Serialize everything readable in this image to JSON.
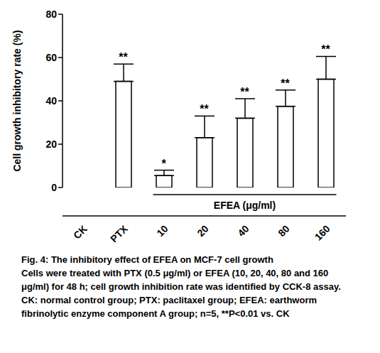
{
  "chart_data": {
    "type": "bar",
    "categories": [
      "CK",
      "PTX",
      "10",
      "20",
      "40",
      "80",
      "160"
    ],
    "values": [
      0,
      49,
      5.5,
      23,
      32,
      37.5,
      50
    ],
    "errors": [
      0,
      8,
      2.5,
      10,
      9,
      7.5,
      10.5
    ],
    "annotations": [
      null,
      "**",
      "*",
      "**",
      "**",
      "**",
      "**"
    ],
    "color": "#ffffff",
    "y_label": "Cell growth inhibitory rate (%)",
    "ylim": [
      0,
      80
    ],
    "yticks": [
      0,
      20,
      40,
      60,
      80
    ],
    "group": {
      "label": "EFEA (μg/ml)",
      "from": "10",
      "to": "160"
    },
    "caption": {
      "title": "Fig. 4: The inhibitory effect of EFEA on MCF-7 cell growth",
      "text": "Cells were treated with PTX (0.5 μg/ml) or EFEA (10, 20, 40, 80 and 160 μg/ml) for 48 h; cell growth inhibition rate was identified by CCK-8 assay. CK: normal control group; PTX: paclitaxel group; EFEA: earthworm fibrinolytic enzyme component A group; n=5, **P<0.01 vs. CK"
    }
  }
}
